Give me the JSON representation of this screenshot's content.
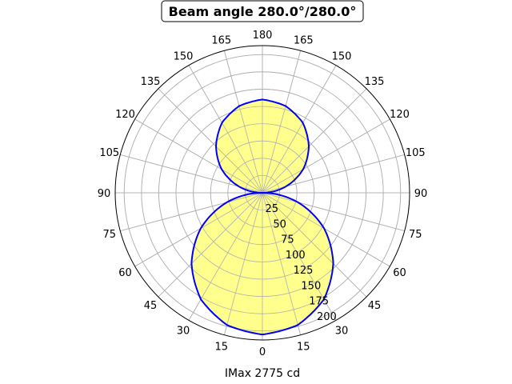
{
  "chart_data": {
    "type": "polar",
    "title": "Beam angle 280.0°/280.0°",
    "xlabel": "IMax 2775 cd",
    "theta_zero": "bottom",
    "theta_tick_labels": [
      "0",
      "15",
      "30",
      "45",
      "60",
      "75",
      "90",
      "105",
      "120",
      "135",
      "150",
      "165",
      "180"
    ],
    "r_tick_labels": [
      "25",
      "50",
      "75",
      "100",
      "125",
      "150",
      "175",
      "200"
    ],
    "r_ticks": [
      25,
      50,
      75,
      100,
      125,
      150,
      175,
      200
    ],
    "rlim": [
      0,
      213
    ],
    "grid": true,
    "series": [
      {
        "gamma": [
          0,
          15,
          30,
          45,
          60,
          75,
          90,
          105,
          120,
          135,
          150,
          165,
          180
        ],
        "values": [
          205,
          198,
          178,
          145,
          103,
          53,
          0,
          35,
          68,
          95,
          117,
          130,
          135
        ],
        "symmetric": true
      }
    ],
    "colors": {
      "line": "#0000ff",
      "fill": "#ffff88",
      "grid": "#b0b0b0"
    }
  }
}
